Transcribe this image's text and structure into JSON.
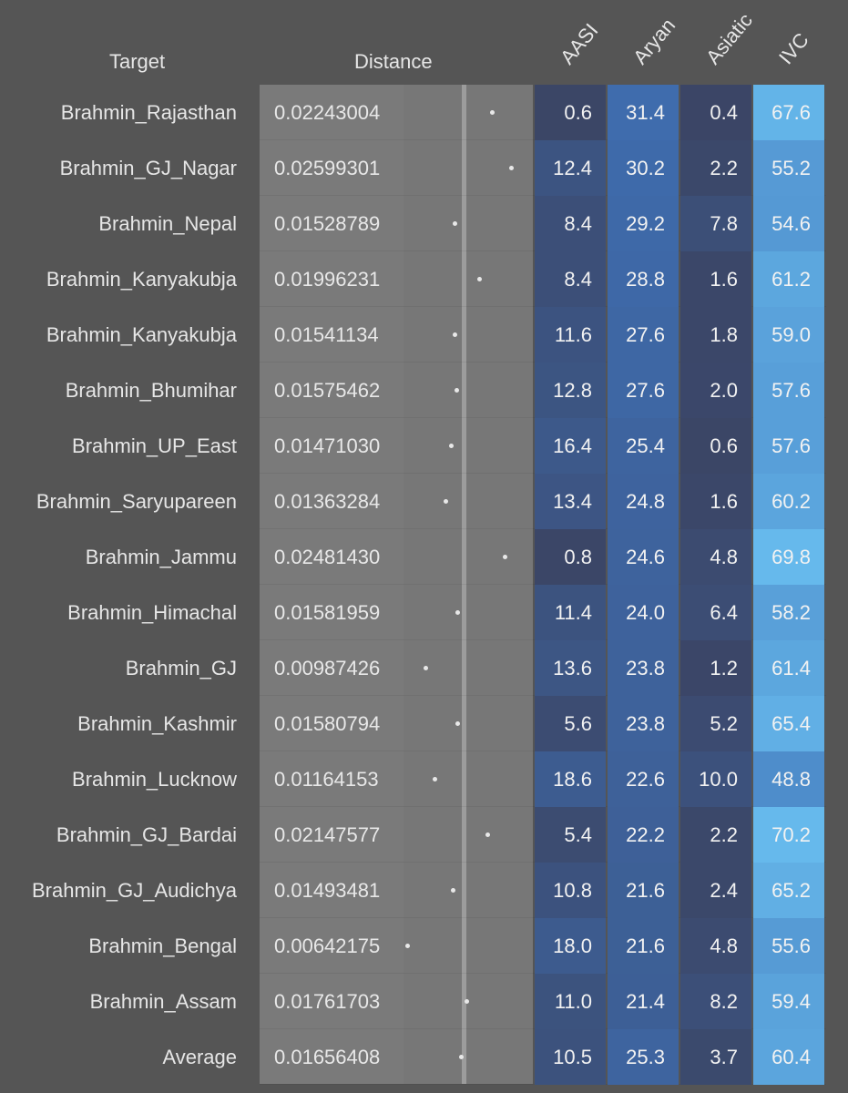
{
  "chart_data": {
    "type": "table",
    "columns": {
      "target": "Target",
      "distance": "Distance",
      "components": [
        "AASI",
        "Aryan",
        "Asiatic",
        "IVC"
      ]
    },
    "rows": [
      {
        "target": "Brahmin_Rajasthan",
        "distance": "0.02243004",
        "values": [
          "0.6",
          "31.4",
          "0.4",
          "67.6"
        ]
      },
      {
        "target": "Brahmin_GJ_Nagar",
        "distance": "0.02599301",
        "values": [
          "12.4",
          "30.2",
          "2.2",
          "55.2"
        ]
      },
      {
        "target": "Brahmin_Nepal",
        "distance": "0.01528789",
        "values": [
          "8.4",
          "29.2",
          "7.8",
          "54.6"
        ]
      },
      {
        "target": "Brahmin_Kanyakubja",
        "distance": "0.01996231",
        "values": [
          "8.4",
          "28.8",
          "1.6",
          "61.2"
        ]
      },
      {
        "target": "Brahmin_Kanyakubja",
        "distance": "0.01541134",
        "values": [
          "11.6",
          "27.6",
          "1.8",
          "59.0"
        ]
      },
      {
        "target": "Brahmin_Bhumihar",
        "distance": "0.01575462",
        "values": [
          "12.8",
          "27.6",
          "2.0",
          "57.6"
        ]
      },
      {
        "target": "Brahmin_UP_East",
        "distance": "0.01471030",
        "values": [
          "16.4",
          "25.4",
          "0.6",
          "57.6"
        ]
      },
      {
        "target": "Brahmin_Saryupareen",
        "distance": "0.01363284",
        "values": [
          "13.4",
          "24.8",
          "1.6",
          "60.2"
        ]
      },
      {
        "target": "Brahmin_Jammu",
        "distance": "0.02481430",
        "values": [
          "0.8",
          "24.6",
          "4.8",
          "69.8"
        ]
      },
      {
        "target": "Brahmin_Himachal",
        "distance": "0.01581959",
        "values": [
          "11.4",
          "24.0",
          "6.4",
          "58.2"
        ]
      },
      {
        "target": "Brahmin_GJ",
        "distance": "0.00987426",
        "values": [
          "13.6",
          "23.8",
          "1.2",
          "61.4"
        ]
      },
      {
        "target": "Brahmin_Kashmir",
        "distance": "0.01580794",
        "values": [
          "5.6",
          "23.8",
          "5.2",
          "65.4"
        ]
      },
      {
        "target": "Brahmin_Lucknow",
        "distance": "0.01164153",
        "values": [
          "18.6",
          "22.6",
          "10.0",
          "48.8"
        ]
      },
      {
        "target": "Brahmin_GJ_Bardai",
        "distance": "0.02147577",
        "values": [
          "5.4",
          "22.2",
          "2.2",
          "70.2"
        ]
      },
      {
        "target": "Brahmin_GJ_Audichya",
        "distance": "0.01493481",
        "values": [
          "10.8",
          "21.6",
          "2.4",
          "65.2"
        ]
      },
      {
        "target": "Brahmin_Bengal",
        "distance": "0.00642175",
        "values": [
          "18.0",
          "21.6",
          "4.8",
          "55.6"
        ]
      },
      {
        "target": "Brahmin_Assam",
        "distance": "0.01761703",
        "values": [
          "11.0",
          "21.4",
          "8.2",
          "59.4"
        ]
      },
      {
        "target": "Average",
        "distance": "0.01656408",
        "values": [
          "10.5",
          "25.3",
          "3.7",
          "60.4"
        ]
      }
    ],
    "color_scale": {
      "low": "#3b4565",
      "mid": "#3f70b5",
      "high": "#66b9ec",
      "domain": [
        0,
        35,
        70
      ]
    }
  }
}
